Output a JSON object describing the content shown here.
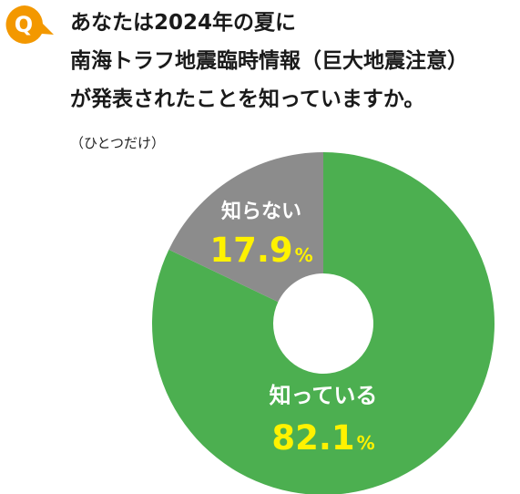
{
  "question": {
    "badge": "Q",
    "title_lines": [
      "あなたは2024年の夏に",
      "南海トラフ地震臨時情報（巨大地震注意）",
      "が発表されたことを知っていますか。"
    ],
    "note": "（ひとつだけ）"
  },
  "colors": {
    "badge": "#f39800",
    "known": "#4caf50",
    "unknown": "#8c8c8c",
    "pct_text": "#fff200",
    "label_text": "#ffffff"
  },
  "chart_data": {
    "type": "pie",
    "donut": true,
    "title": "",
    "slices": [
      {
        "label": "知っている",
        "value": 82.1,
        "display_number": "82.1",
        "unit": "%",
        "color": "#4caf50"
      },
      {
        "label": "知らない",
        "value": 17.9,
        "display_number": "17.9",
        "unit": "%",
        "color": "#8c8c8c"
      }
    ]
  }
}
